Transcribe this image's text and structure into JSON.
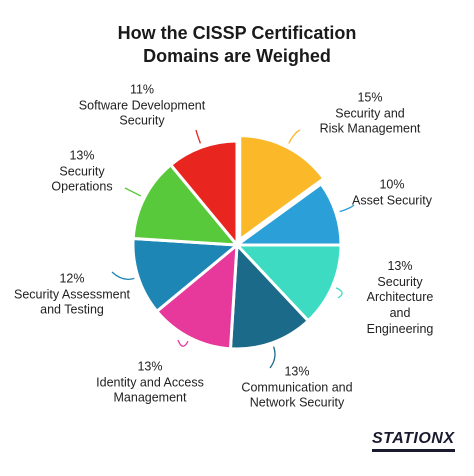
{
  "chart_data": {
    "type": "pie",
    "title": "How the CISSP Certification\nDomains are Weighed",
    "categories": [
      "Security and\nRisk Management",
      "Asset Security",
      "Security Architecture\nand Engineering",
      "Communication and\nNetwork Security",
      "Identity and Access\nManagement",
      "Security Assessment\nand Testing",
      "Security\nOperations",
      "Software Development\nSecurity"
    ],
    "values": [
      15,
      10,
      13,
      13,
      13,
      12,
      13,
      11
    ],
    "value_labels": [
      "15%",
      "10%",
      "13%",
      "13%",
      "13%",
      "12%",
      "13%",
      "11%"
    ],
    "colors": [
      "#fbb829",
      "#2a9fd8",
      "#3ddbc1",
      "#1c6a8a",
      "#e6399b",
      "#1e86b4",
      "#58c93a",
      "#e8251f"
    ],
    "brand": "STATIONX"
  }
}
